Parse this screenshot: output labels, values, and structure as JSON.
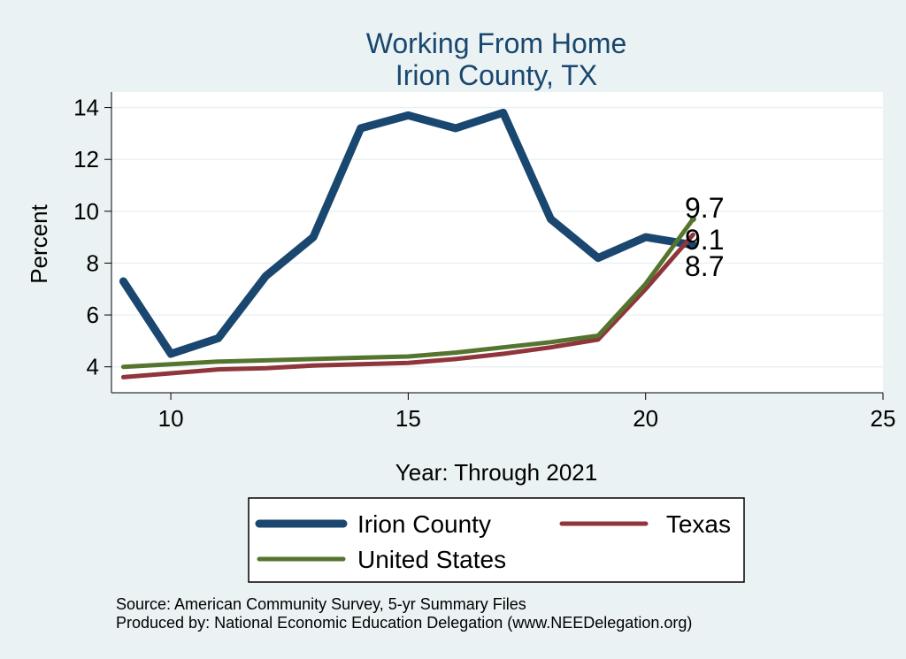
{
  "colors": {
    "background": "#eaf2f3",
    "plot_background": "#ffffff",
    "title": "#1a476f",
    "irion": "#1a476f",
    "texas": "#90353b",
    "us": "#55752f",
    "grid": "#eaf2f3",
    "text": "#000000"
  },
  "chart_data": {
    "type": "line",
    "title": "Working From Home",
    "subtitle": "Irion County, TX",
    "xlabel": "Year: Through 2021",
    "ylabel": "Percent",
    "xlim": [
      8.75,
      25
    ],
    "ylim": [
      3.0,
      14.6
    ],
    "xticks": [
      10,
      15,
      20,
      25
    ],
    "yticks": [
      4,
      6,
      8,
      10,
      12,
      14
    ],
    "grid": true,
    "x": [
      9,
      10,
      11,
      12,
      13,
      14,
      15,
      16,
      17,
      18,
      19,
      20,
      21
    ],
    "series": [
      {
        "name": "Irion County",
        "color_key": "irion",
        "width": 9,
        "values": [
          7.3,
          4.5,
          5.1,
          7.5,
          9.0,
          13.2,
          13.7,
          13.2,
          13.8,
          9.7,
          8.2,
          9.0,
          8.7
        ]
      },
      {
        "name": "Texas",
        "color_key": "texas",
        "width": 5,
        "values": [
          3.6,
          3.75,
          3.9,
          3.95,
          4.05,
          4.1,
          4.15,
          4.3,
          4.5,
          4.75,
          5.05,
          7.0,
          9.1
        ]
      },
      {
        "name": "United States",
        "color_key": "us",
        "width": 5,
        "values": [
          4.0,
          4.1,
          4.2,
          4.25,
          4.3,
          4.35,
          4.4,
          4.55,
          4.75,
          4.95,
          5.2,
          7.2,
          9.7
        ]
      }
    ],
    "end_labels": [
      "9.7",
      "9.1",
      "8.7"
    ],
    "legend": [
      {
        "label": "Irion County",
        "color_key": "irion",
        "width": 9
      },
      {
        "label": "Texas",
        "color_key": "texas",
        "width": 5
      },
      {
        "label": "United States",
        "color_key": "us",
        "width": 5
      }
    ],
    "legend_position": "bottom"
  },
  "footer": {
    "source": "Source: American Community Survey, 5-yr Summary Files",
    "produced": "Produced by: National Economic Education Delegation (www.NEEDelegation.org)"
  }
}
